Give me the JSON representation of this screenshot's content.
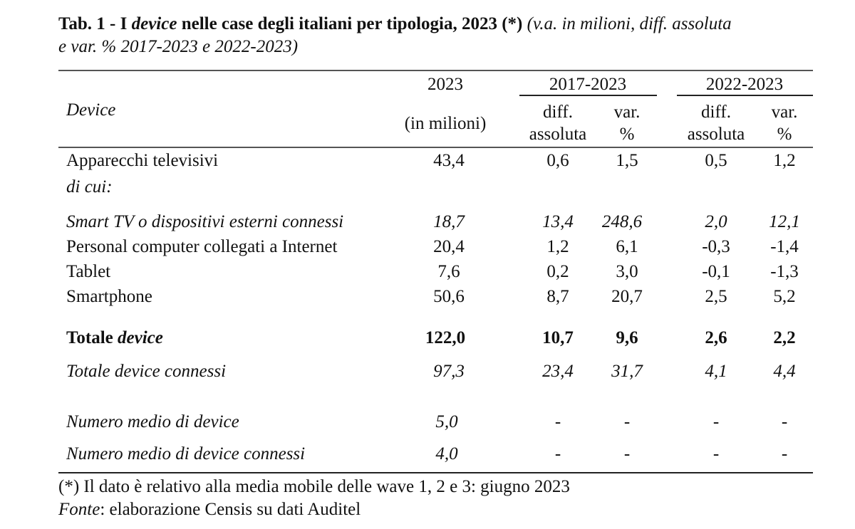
{
  "title": {
    "prefix": "Tab. 1 - I ",
    "device_word": "device",
    "main": " nelle case degli italiani per tipologia, 2023 (*) ",
    "note_line1": "(v.a. in milioni, diff. assoluta",
    "note_line2": "e var. % 2017-2023 e 2022-2023)"
  },
  "header": {
    "device": "Device",
    "year": "2023",
    "year_unit": "(in milioni)",
    "period1": "2017-2023",
    "period2": "2022-2023",
    "diff_line1": "diff.",
    "diff_line2": "assoluta",
    "var_line1": "var.",
    "var_line2": "%"
  },
  "rows": [
    {
      "label": "Apparecchi televisivi",
      "v2023": "43,4",
      "d1": "0,6",
      "p1": "1,5",
      "d2": "0,5",
      "p2": "1,2"
    },
    {
      "label": "di cui:"
    },
    {
      "label": "Smart TV o dispositivi esterni connessi",
      "v2023": "18,7",
      "d1": "13,4",
      "p1": "248,6",
      "d2": "2,0",
      "p2": "12,1"
    },
    {
      "label": "Personal computer collegati a Internet",
      "v2023": "20,4",
      "d1": "1,2",
      "p1": "6,1",
      "d2": "-0,3",
      "p2": "-1,4"
    },
    {
      "label": "Tablet",
      "v2023": "7,6",
      "d1": "0,2",
      "p1": "3,0",
      "d2": "-0,1",
      "p2": "-1,3"
    },
    {
      "label": "Smartphone",
      "v2023": "50,6",
      "d1": "8,7",
      "p1": "20,7",
      "d2": "2,5",
      "p2": "5,2"
    },
    {
      "label_prefix": "Totale ",
      "label_ital": "device",
      "v2023": "122,0",
      "d1": "10,7",
      "p1": "9,6",
      "d2": "2,6",
      "p2": "2,2"
    },
    {
      "label": "Totale device connessi",
      "v2023": "97,3",
      "d1": "23,4",
      "p1": "31,7",
      "d2": "4,1",
      "p2": "4,4"
    },
    {
      "label": "Numero medio di device",
      "v2023": "5,0",
      "d1": "-",
      "p1": "-",
      "d2": "-",
      "p2": "-"
    },
    {
      "label": "Numero medio di device connessi",
      "v2023": "4,0",
      "d1": "-",
      "p1": "-",
      "d2": "-",
      "p2": "-"
    }
  ],
  "footnote": "(*) Il dato è relativo alla media mobile delle wave 1, 2 e 3: giugno 2023",
  "source": {
    "label": "Fonte",
    "text": ": elaborazione Censis su dati Auditel"
  }
}
